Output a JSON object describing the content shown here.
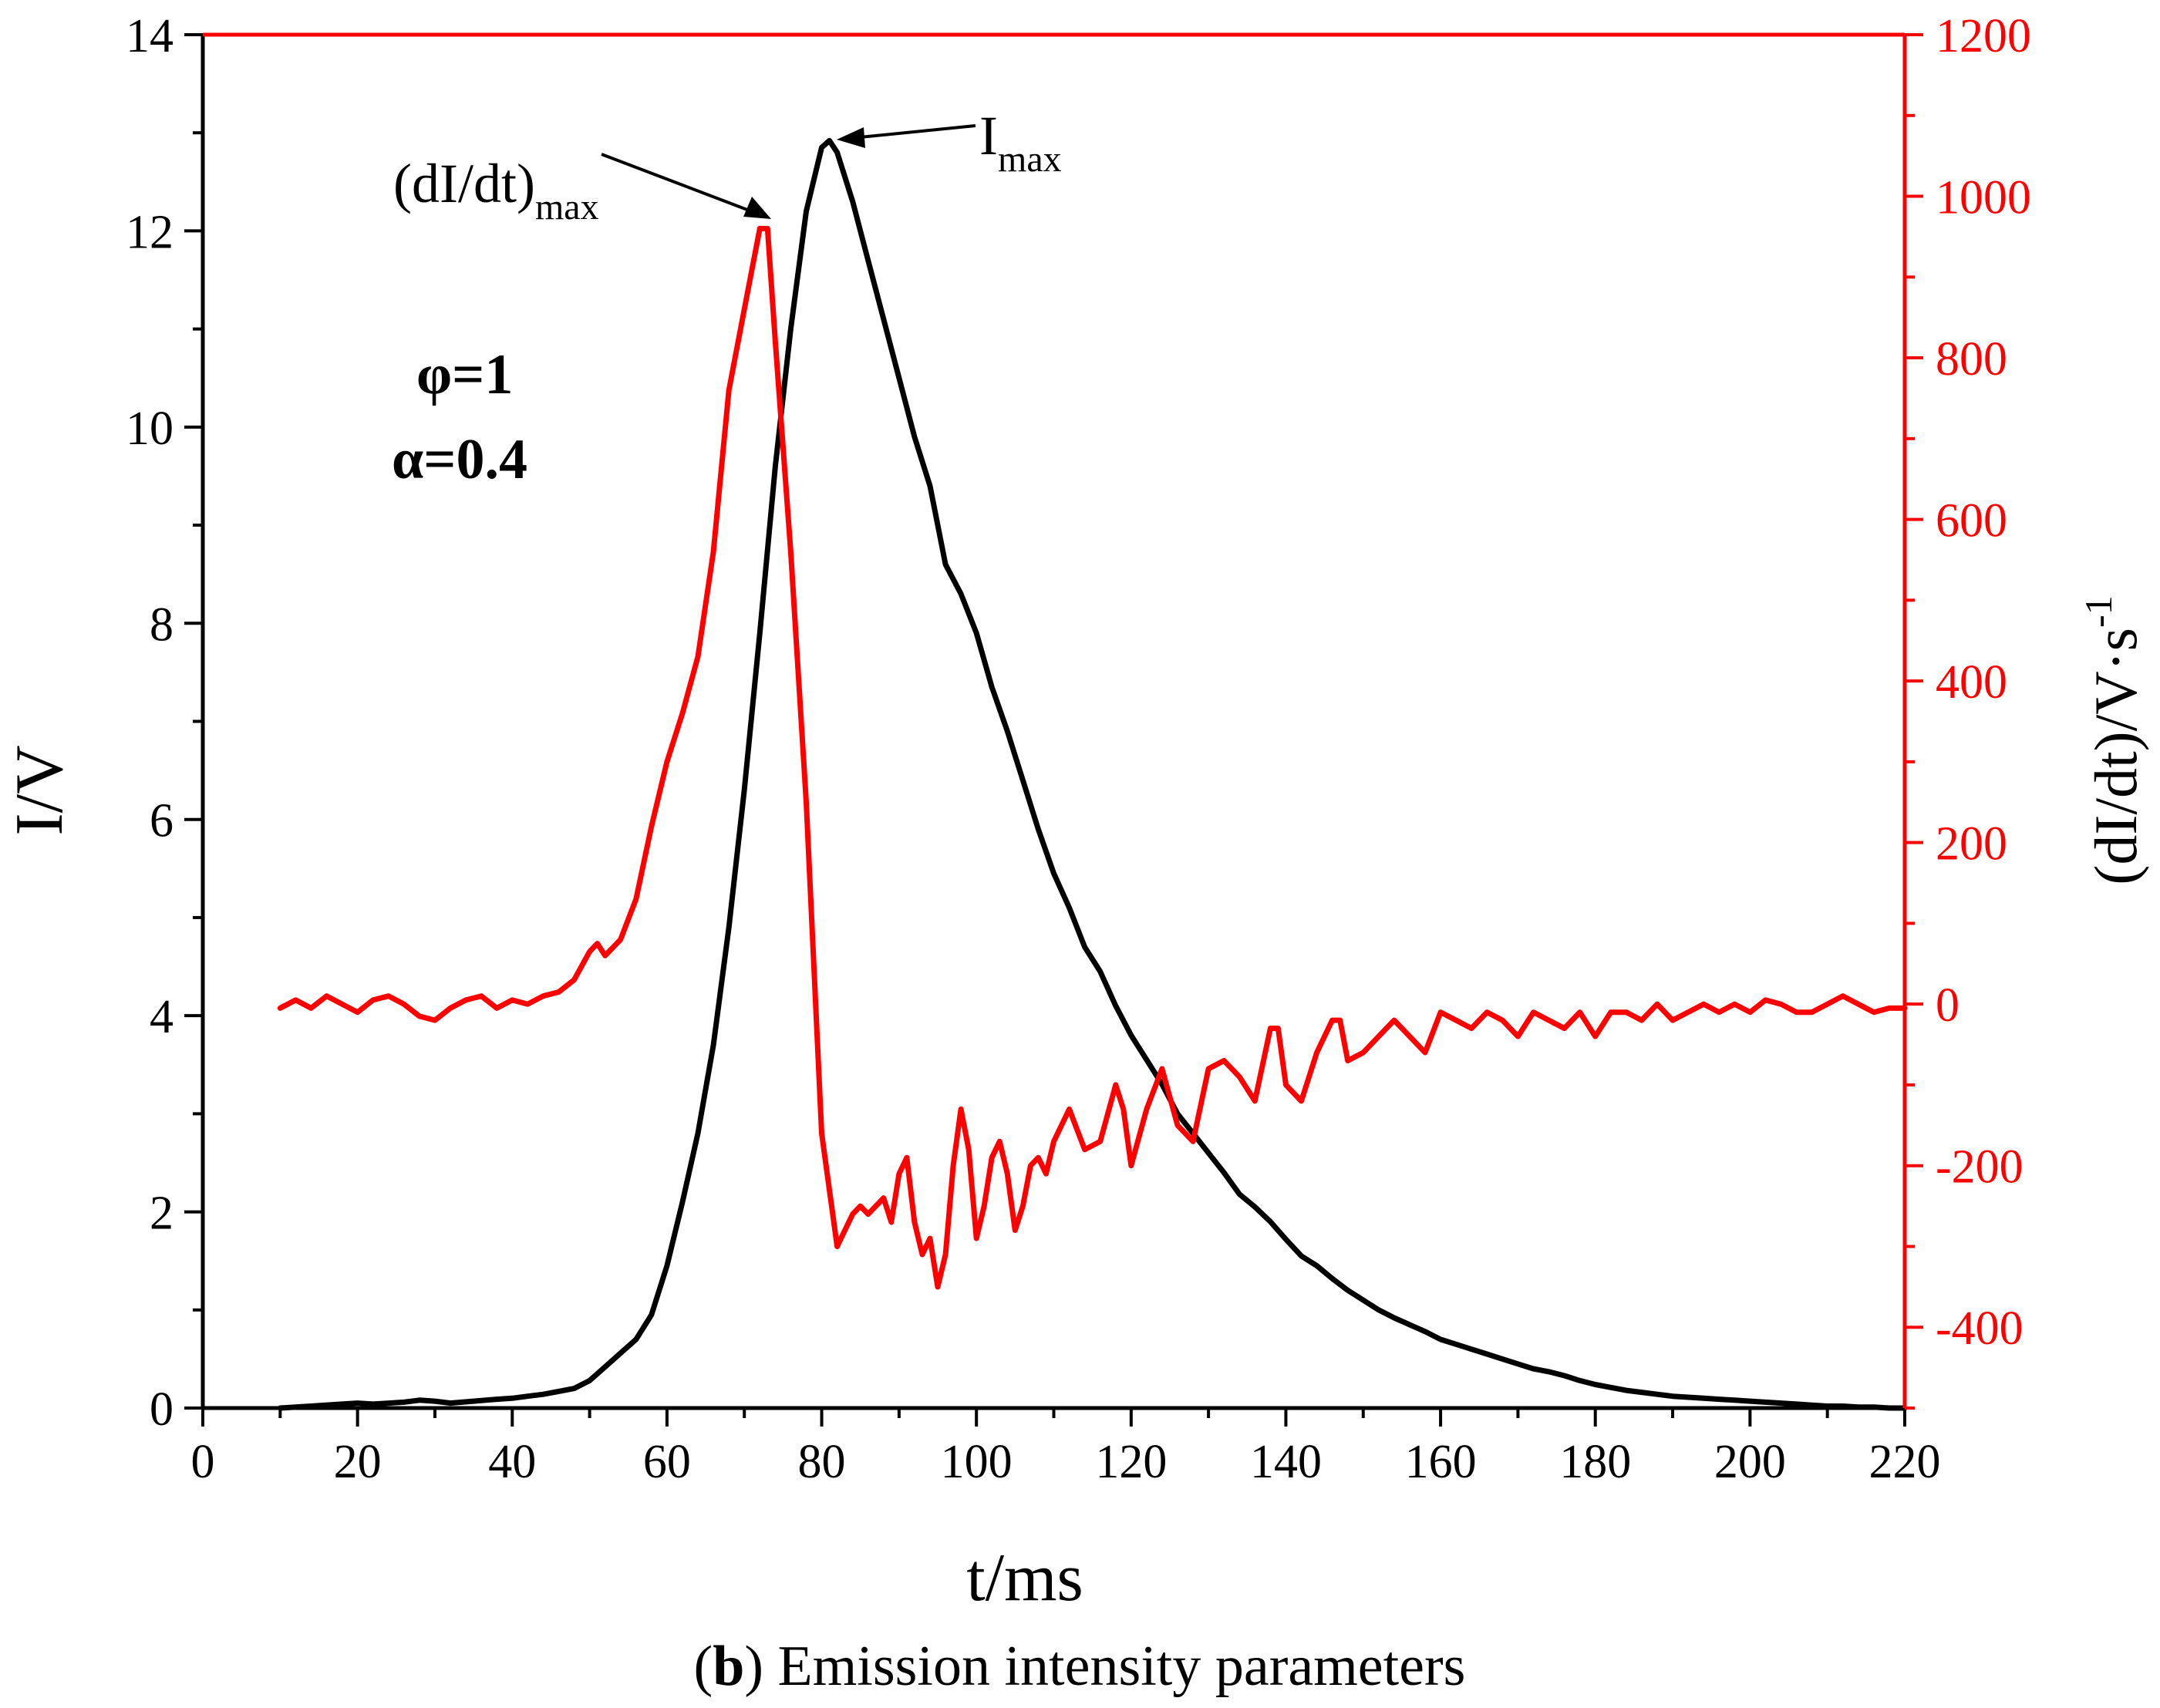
{
  "chart_data": {
    "type": "line",
    "caption_letter": "b",
    "caption_text": " Emission intensity parameters",
    "xlabel": "t/ms",
    "ylabel_left": "I/V",
    "ylabel_right_main": "(dI/dt)/V·s",
    "ylabel_right_sup": "-1",
    "xlim": [
      0,
      220
    ],
    "ylim_left": [
      0,
      14
    ],
    "ylim_right": [
      -500,
      1200
    ],
    "x_ticks": [
      0,
      20,
      40,
      60,
      80,
      100,
      120,
      140,
      160,
      180,
      200,
      220
    ],
    "y_ticks_left": [
      0,
      2,
      4,
      6,
      8,
      10,
      12,
      14
    ],
    "y_ticks_right": [
      -400,
      -200,
      0,
      200,
      400,
      600,
      800,
      1000,
      1200
    ],
    "x_tick_labels": [
      "0",
      "20",
      "40",
      "60",
      "80",
      "100",
      "120",
      "140",
      "160",
      "180",
      "200",
      "220"
    ],
    "y_tick_labels_left": [
      "0",
      "2",
      "4",
      "6",
      "8",
      "10",
      "12",
      "14"
    ],
    "y_tick_labels_right": [
      "-400",
      "-200",
      "0",
      "200",
      "400",
      "600",
      "800",
      "1000",
      "1200"
    ],
    "colors": {
      "intensity": "#000000",
      "derivative": "#ff0000",
      "axis_left": "#000000",
      "axis_right": "#ff0000"
    },
    "params": {
      "phi": "φ=1",
      "alpha": "α=0.4"
    },
    "annotations": {
      "imax_main": "I",
      "imax_sub": "max",
      "dimax_main": "(dI/dt)",
      "dimax_sub": "max"
    },
    "series": [
      {
        "name": "I",
        "axis": "left",
        "x": [
          10,
          14,
          18,
          20,
          22,
          26,
          28,
          30,
          32,
          35,
          38,
          40,
          42,
          44,
          46,
          48,
          50,
          52,
          54,
          56,
          58,
          60,
          62,
          64,
          66,
          68,
          70,
          72,
          74,
          76,
          78,
          80,
          81,
          82,
          84,
          86,
          88,
          90,
          92,
          94,
          96,
          98,
          100,
          102,
          104,
          106,
          108,
          110,
          112,
          114,
          116,
          118,
          120,
          122,
          124,
          126,
          128,
          130,
          132,
          134,
          136,
          138,
          140,
          142,
          144,
          146,
          148,
          150,
          152,
          154,
          156,
          158,
          160,
          162,
          164,
          166,
          168,
          170,
          172,
          174,
          176,
          178,
          180,
          182,
          184,
          186,
          188,
          190,
          192,
          194,
          196,
          198,
          200,
          202,
          204,
          206,
          208,
          210,
          212,
          214,
          216,
          218,
          220
        ],
        "y": [
          0.0,
          0.02,
          0.04,
          0.05,
          0.04,
          0.06,
          0.08,
          0.07,
          0.05,
          0.07,
          0.09,
          0.1,
          0.12,
          0.14,
          0.17,
          0.2,
          0.28,
          0.42,
          0.56,
          0.7,
          0.95,
          1.45,
          2.1,
          2.8,
          3.7,
          4.9,
          6.3,
          7.9,
          9.6,
          11.0,
          12.2,
          12.85,
          12.92,
          12.8,
          12.3,
          11.7,
          11.1,
          10.5,
          9.9,
          9.4,
          8.6,
          8.3,
          7.9,
          7.35,
          6.9,
          6.4,
          5.9,
          5.45,
          5.1,
          4.7,
          4.45,
          4.1,
          3.8,
          3.55,
          3.3,
          3.0,
          2.8,
          2.6,
          2.4,
          2.18,
          2.05,
          1.9,
          1.72,
          1.55,
          1.45,
          1.32,
          1.2,
          1.1,
          1.0,
          0.92,
          0.85,
          0.78,
          0.7,
          0.65,
          0.6,
          0.55,
          0.5,
          0.45,
          0.4,
          0.37,
          0.33,
          0.28,
          0.24,
          0.21,
          0.18,
          0.16,
          0.14,
          0.12,
          0.11,
          0.1,
          0.09,
          0.08,
          0.07,
          0.06,
          0.05,
          0.04,
          0.03,
          0.02,
          0.02,
          0.01,
          0.01,
          0.0,
          0.0
        ]
      },
      {
        "name": "dI/dt",
        "axis": "right",
        "x": [
          10,
          12,
          14,
          16,
          18,
          20,
          22,
          24,
          26,
          28,
          30,
          32,
          34,
          36,
          38,
          40,
          42,
          44,
          46,
          48,
          50,
          51,
          52,
          54,
          56,
          58,
          60,
          62,
          64,
          66,
          68,
          70,
          72,
          73,
          74,
          76,
          78,
          80,
          82,
          83,
          84,
          85,
          86,
          87,
          88,
          89,
          90,
          91,
          92,
          93,
          94,
          95,
          96,
          97,
          98,
          99,
          100,
          101,
          102,
          103,
          104,
          105,
          106,
          107,
          108,
          109,
          110,
          112,
          114,
          116,
          118,
          119,
          120,
          122,
          124,
          126,
          128,
          130,
          132,
          134,
          136,
          138,
          139,
          140,
          142,
          144,
          146,
          147,
          148,
          150,
          152,
          154,
          156,
          158,
          160,
          162,
          164,
          166,
          168,
          170,
          172,
          174,
          176,
          178,
          180,
          182,
          184,
          186,
          188,
          190,
          192,
          194,
          196,
          198,
          200,
          202,
          204,
          206,
          208,
          210,
          212,
          214,
          216,
          218,
          220
        ],
        "y": [
          -5,
          5,
          -5,
          10,
          0,
          -10,
          5,
          10,
          0,
          -15,
          -20,
          -5,
          5,
          10,
          -5,
          5,
          0,
          10,
          15,
          30,
          65,
          75,
          60,
          80,
          130,
          220,
          300,
          360,
          430,
          560,
          760,
          860,
          960,
          960,
          820,
          560,
          250,
          -160,
          -300,
          -280,
          -260,
          -250,
          -260,
          -250,
          -240,
          -270,
          -210,
          -190,
          -270,
          -310,
          -290,
          -350,
          -310,
          -200,
          -130,
          -180,
          -290,
          -250,
          -190,
          -170,
          -210,
          -280,
          -250,
          -200,
          -190,
          -210,
          -170,
          -130,
          -180,
          -170,
          -100,
          -130,
          -200,
          -130,
          -80,
          -150,
          -170,
          -80,
          -70,
          -90,
          -120,
          -30,
          -30,
          -100,
          -120,
          -60,
          -20,
          -20,
          -70,
          -60,
          -40,
          -20,
          -40,
          -60,
          -10,
          -20,
          -30,
          -10,
          -20,
          -40,
          -10,
          -20,
          -30,
          -10,
          -40,
          -10,
          -10,
          -20,
          0,
          -20,
          -10,
          0,
          -10,
          0,
          -10,
          5,
          0,
          -10,
          -10,
          0,
          10,
          0,
          -10,
          -5,
          -5
        ]
      }
    ]
  }
}
